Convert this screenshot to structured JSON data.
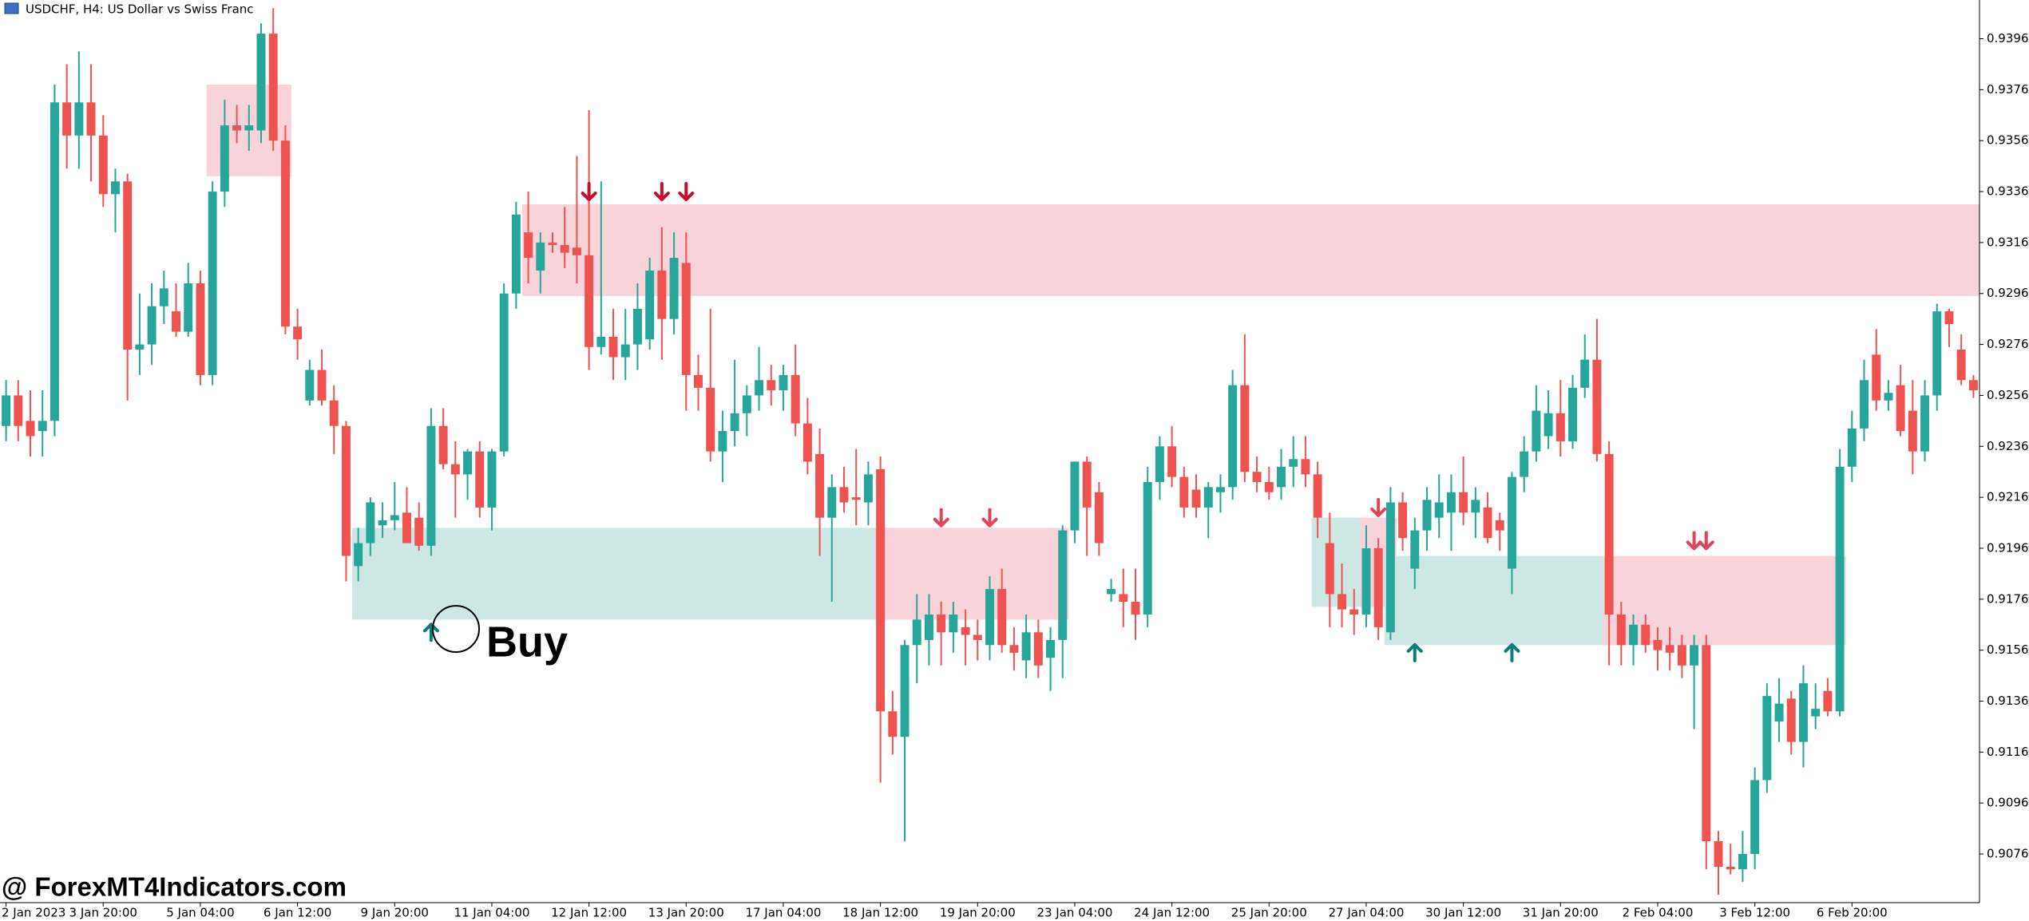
{
  "chart_data": {
    "type": "candlestick",
    "title": "USDCHF, H4:  US Dollar vs Swiss Franc",
    "annotation": "Buy",
    "watermark": "@ ForexMT4Indicators.com",
    "up_color": "#26a69a",
    "down_color": "#ef5350",
    "ylim": [
      0.90569,
      0.94112
    ],
    "yticks": [
      {
        "value": 0.9396,
        "label": "0.93960"
      },
      {
        "value": 0.9376,
        "label": "0.93760"
      },
      {
        "value": 0.9356,
        "label": "0.93560"
      },
      {
        "value": 0.9336,
        "label": "0.93360"
      },
      {
        "value": 0.9316,
        "label": "0.93160"
      },
      {
        "value": 0.9296,
        "label": "0.92960"
      },
      {
        "value": 0.9276,
        "label": "0.92760"
      },
      {
        "value": 0.9256,
        "label": "0.92560"
      },
      {
        "value": 0.9236,
        "label": "0.92360"
      },
      {
        "value": 0.9216,
        "label": "0.92160"
      },
      {
        "value": 0.9196,
        "label": "0.91960"
      },
      {
        "value": 0.9176,
        "label": "0.91760"
      },
      {
        "value": 0.9156,
        "label": "0.91560"
      },
      {
        "value": 0.9136,
        "label": "0.91360"
      },
      {
        "value": 0.9116,
        "label": "0.91160"
      },
      {
        "value": 0.9096,
        "label": "0.90960"
      },
      {
        "value": 0.9076,
        "label": "0.90760"
      }
    ],
    "categories": [
      "2 Jan 2023",
      null,
      null,
      null,
      null,
      null,
      null,
      null,
      "3 Jan 20:00",
      null,
      null,
      null,
      null,
      null,
      null,
      null,
      "5 Jan 04:00",
      null,
      null,
      null,
      null,
      null,
      null,
      null,
      "6 Jan 12:00",
      null,
      null,
      null,
      null,
      null,
      null,
      null,
      "9 Jan 20:00",
      null,
      null,
      null,
      null,
      null,
      null,
      null,
      "11 Jan 04:00",
      null,
      null,
      null,
      null,
      null,
      null,
      null,
      "12 Jan 12:00",
      null,
      null,
      null,
      null,
      null,
      null,
      null,
      "13 Jan 20:00",
      null,
      null,
      null,
      null,
      null,
      null,
      null,
      "17 Jan 04:00",
      null,
      null,
      null,
      null,
      null,
      null,
      null,
      "18 Jan 12:00",
      null,
      null,
      null,
      null,
      null,
      null,
      null,
      "19 Jan 20:00",
      null,
      null,
      null,
      null,
      null,
      null,
      null,
      "23 Jan 04:00",
      null,
      null,
      null,
      null,
      null,
      null,
      null,
      "24 Jan 12:00",
      null,
      null,
      null,
      null,
      null,
      null,
      null,
      "25 Jan 20:00",
      null,
      null,
      null,
      null,
      null,
      null,
      null,
      "27 Jan 04:00",
      null,
      null,
      null,
      null,
      null,
      null,
      null,
      "30 Jan 12:00",
      null,
      null,
      null,
      null,
      null,
      null,
      null,
      "31 Jan 20:00",
      null,
      null,
      null,
      null,
      null,
      null,
      null,
      "2 Feb 04:00",
      null,
      null,
      null,
      null,
      null,
      null,
      null,
      "3 Feb 12:00",
      null,
      null,
      null,
      null,
      null,
      null,
      null,
      "6 Feb 20:00",
      null,
      null,
      null,
      null,
      null,
      null,
      null,
      null,
      null,
      null
    ],
    "candles": [
      [
        0.9244,
        0.9262,
        0.9238,
        0.9256
      ],
      [
        0.9256,
        0.9262,
        0.9238,
        0.9244
      ],
      [
        0.9246,
        0.9258,
        0.9232,
        0.924
      ],
      [
        0.9242,
        0.9258,
        0.9232,
        0.9246
      ],
      [
        0.9246,
        0.9378,
        0.924,
        0.9371
      ],
      [
        0.9371,
        0.9386,
        0.9345,
        0.9358
      ],
      [
        0.9358,
        0.9391,
        0.9345,
        0.9371
      ],
      [
        0.9371,
        0.9386,
        0.934,
        0.9358
      ],
      [
        0.9358,
        0.9366,
        0.933,
        0.9335
      ],
      [
        0.9335,
        0.9345,
        0.932,
        0.934
      ],
      [
        0.934,
        0.9343,
        0.9254,
        0.9274
      ],
      [
        0.9274,
        0.9296,
        0.9264,
        0.9276
      ],
      [
        0.9276,
        0.93,
        0.9268,
        0.9291
      ],
      [
        0.9291,
        0.9305,
        0.9284,
        0.9298
      ],
      [
        0.9289,
        0.93,
        0.9279,
        0.9281
      ],
      [
        0.9281,
        0.9308,
        0.9279,
        0.93
      ],
      [
        0.93,
        0.9305,
        0.926,
        0.9264
      ],
      [
        0.9264,
        0.934,
        0.926,
        0.9336
      ],
      [
        0.9336,
        0.9372,
        0.933,
        0.9362
      ],
      [
        0.9362,
        0.937,
        0.9355,
        0.936
      ],
      [
        0.936,
        0.937,
        0.9352,
        0.9362
      ],
      [
        0.936,
        0.9402,
        0.9355,
        0.9398
      ],
      [
        0.9398,
        0.9408,
        0.9352,
        0.9356
      ],
      [
        0.9356,
        0.9362,
        0.928,
        0.9283
      ],
      [
        0.9283,
        0.929,
        0.927,
        0.9278
      ],
      [
        0.9254,
        0.927,
        0.9252,
        0.9266
      ],
      [
        0.9266,
        0.9274,
        0.9252,
        0.9254
      ],
      [
        0.9254,
        0.926,
        0.9233,
        0.9244
      ],
      [
        0.9244,
        0.9246,
        0.9183,
        0.9193
      ],
      [
        0.9189,
        0.9204,
        0.9183,
        0.9198
      ],
      [
        0.9198,
        0.9216,
        0.9193,
        0.9214
      ],
      [
        0.9205,
        0.9214,
        0.92,
        0.9207
      ],
      [
        0.9207,
        0.9222,
        0.9203,
        0.9209
      ],
      [
        0.921,
        0.922,
        0.9198,
        0.9198
      ],
      [
        0.9208,
        0.9214,
        0.9195,
        0.9197
      ],
      [
        0.9197,
        0.9251,
        0.9193,
        0.9244
      ],
      [
        0.9244,
        0.9251,
        0.9227,
        0.9229
      ],
      [
        0.9229,
        0.9238,
        0.9208,
        0.9225
      ],
      [
        0.9225,
        0.9235,
        0.9215,
        0.9234
      ],
      [
        0.9234,
        0.9238,
        0.9208,
        0.9212
      ],
      [
        0.9212,
        0.9235,
        0.9203,
        0.9234
      ],
      [
        0.9234,
        0.93,
        0.9232,
        0.9296
      ],
      [
        0.9296,
        0.9332,
        0.929,
        0.9327
      ],
      [
        0.932,
        0.9336,
        0.93,
        0.931
      ],
      [
        0.9305,
        0.932,
        0.9296,
        0.9316
      ],
      [
        0.9316,
        0.932,
        0.9312,
        0.9315
      ],
      [
        0.9315,
        0.933,
        0.9306,
        0.9312
      ],
      [
        0.9314,
        0.935,
        0.93,
        0.9311
      ],
      [
        0.9311,
        0.9368,
        0.9266,
        0.9275
      ],
      [
        0.9275,
        0.934,
        0.9272,
        0.9279
      ],
      [
        0.9279,
        0.929,
        0.9262,
        0.9271
      ],
      [
        0.9271,
        0.929,
        0.9262,
        0.9276
      ],
      [
        0.9276,
        0.93,
        0.9266,
        0.929
      ],
      [
        0.9278,
        0.931,
        0.9274,
        0.9305
      ],
      [
        0.9305,
        0.9322,
        0.927,
        0.9286
      ],
      [
        0.9286,
        0.932,
        0.928,
        0.931
      ],
      [
        0.9308,
        0.932,
        0.925,
        0.9264
      ],
      [
        0.9264,
        0.9272,
        0.925,
        0.9259
      ],
      [
        0.9259,
        0.929,
        0.923,
        0.9234
      ],
      [
        0.9234,
        0.925,
        0.9222,
        0.9242
      ],
      [
        0.9242,
        0.927,
        0.9236,
        0.9249
      ],
      [
        0.9249,
        0.926,
        0.924,
        0.9256
      ],
      [
        0.9256,
        0.9275,
        0.925,
        0.9262
      ],
      [
        0.9262,
        0.9268,
        0.9252,
        0.9258
      ],
      [
        0.9258,
        0.9268,
        0.925,
        0.9264
      ],
      [
        0.9264,
        0.9276,
        0.924,
        0.9245
      ],
      [
        0.9245,
        0.9255,
        0.9225,
        0.923
      ],
      [
        0.9233,
        0.9243,
        0.9193,
        0.9208
      ],
      [
        0.9208,
        0.9225,
        0.9175,
        0.922
      ],
      [
        0.922,
        0.9228,
        0.921,
        0.9214
      ],
      [
        0.9216,
        0.9235,
        0.9205,
        0.9215
      ],
      [
        0.9214,
        0.923,
        0.9205,
        0.9225
      ],
      [
        0.9227,
        0.9232,
        0.9104,
        0.9132
      ],
      [
        0.9132,
        0.914,
        0.9115,
        0.9122
      ],
      [
        0.9122,
        0.916,
        0.9081,
        0.9158
      ],
      [
        0.9158,
        0.9178,
        0.9143,
        0.9168
      ],
      [
        0.916,
        0.9178,
        0.915,
        0.917
      ],
      [
        0.917,
        0.9175,
        0.915,
        0.9163
      ],
      [
        0.9163,
        0.9175,
        0.9155,
        0.917
      ],
      [
        0.9165,
        0.9172,
        0.915,
        0.9162
      ],
      [
        0.9162,
        0.9168,
        0.9152,
        0.916
      ],
      [
        0.9158,
        0.9185,
        0.9152,
        0.918
      ],
      [
        0.918,
        0.9188,
        0.9155,
        0.9158
      ],
      [
        0.9158,
        0.9165,
        0.9148,
        0.9155
      ],
      [
        0.9152,
        0.917,
        0.9145,
        0.9163
      ],
      [
        0.9163,
        0.9168,
        0.9145,
        0.915
      ],
      [
        0.9153,
        0.9165,
        0.914,
        0.916
      ],
      [
        0.916,
        0.9205,
        0.9145,
        0.9203
      ],
      [
        0.9203,
        0.923,
        0.9198,
        0.923
      ],
      [
        0.923,
        0.9232,
        0.9193,
        0.9212
      ],
      [
        0.9218,
        0.9222,
        0.9193,
        0.9198
      ],
      [
        0.9178,
        0.9184,
        0.9175,
        0.918
      ],
      [
        0.9178,
        0.9188,
        0.9165,
        0.9175
      ],
      [
        0.9175,
        0.9188,
        0.916,
        0.917
      ],
      [
        0.917,
        0.9228,
        0.9165,
        0.9222
      ],
      [
        0.9222,
        0.924,
        0.9215,
        0.9236
      ],
      [
        0.9236,
        0.9244,
        0.922,
        0.9224
      ],
      [
        0.9224,
        0.9228,
        0.9208,
        0.9212
      ],
      [
        0.9219,
        0.9225,
        0.9208,
        0.9212
      ],
      [
        0.9212,
        0.9222,
        0.92,
        0.922
      ],
      [
        0.9218,
        0.9225,
        0.921,
        0.922
      ],
      [
        0.922,
        0.9266,
        0.9215,
        0.926
      ],
      [
        0.926,
        0.928,
        0.9222,
        0.9226
      ],
      [
        0.9226,
        0.9232,
        0.9218,
        0.9222
      ],
      [
        0.9222,
        0.9228,
        0.9215,
        0.9218
      ],
      [
        0.922,
        0.9235,
        0.9215,
        0.9228
      ],
      [
        0.9228,
        0.924,
        0.922,
        0.9231
      ],
      [
        0.9231,
        0.924,
        0.922,
        0.9225
      ],
      [
        0.9225,
        0.923,
        0.92,
        0.9208
      ],
      [
        0.9198,
        0.921,
        0.9165,
        0.9178
      ],
      [
        0.9178,
        0.919,
        0.9165,
        0.9172
      ],
      [
        0.9172,
        0.918,
        0.9162,
        0.917
      ],
      [
        0.917,
        0.9205,
        0.9165,
        0.9196
      ],
      [
        0.9196,
        0.92,
        0.916,
        0.9165
      ],
      [
        0.9163,
        0.922,
        0.916,
        0.9214
      ],
      [
        0.9214,
        0.9218,
        0.9195,
        0.92
      ],
      [
        0.9188,
        0.9208,
        0.918,
        0.9203
      ],
      [
        0.9203,
        0.922,
        0.9195,
        0.9215
      ],
      [
        0.9208,
        0.9225,
        0.92,
        0.9214
      ],
      [
        0.921,
        0.9225,
        0.9195,
        0.9218
      ],
      [
        0.9218,
        0.9232,
        0.9205,
        0.921
      ],
      [
        0.921,
        0.922,
        0.92,
        0.9215
      ],
      [
        0.9212,
        0.9218,
        0.9198,
        0.92
      ],
      [
        0.9207,
        0.921,
        0.9195,
        0.9203
      ],
      [
        0.9188,
        0.9226,
        0.9178,
        0.9224
      ],
      [
        0.9224,
        0.924,
        0.9218,
        0.9234
      ],
      [
        0.9234,
        0.926,
        0.923,
        0.925
      ],
      [
        0.924,
        0.9258,
        0.9235,
        0.9249
      ],
      [
        0.9249,
        0.9262,
        0.9232,
        0.9238
      ],
      [
        0.9238,
        0.9264,
        0.9235,
        0.9259
      ],
      [
        0.9259,
        0.928,
        0.9255,
        0.927
      ],
      [
        0.927,
        0.9286,
        0.923,
        0.9233
      ],
      [
        0.9233,
        0.9238,
        0.915,
        0.917
      ],
      [
        0.917,
        0.9175,
        0.915,
        0.9158
      ],
      [
        0.9158,
        0.917,
        0.915,
        0.9166
      ],
      [
        0.9166,
        0.917,
        0.9155,
        0.9158
      ],
      [
        0.916,
        0.9165,
        0.9148,
        0.9156
      ],
      [
        0.9158,
        0.9165,
        0.9148,
        0.9155
      ],
      [
        0.9158,
        0.9162,
        0.9145,
        0.915
      ],
      [
        0.915,
        0.9162,
        0.9125,
        0.9158
      ],
      [
        0.9158,
        0.9162,
        0.907,
        0.9081
      ],
      [
        0.9081,
        0.9085,
        0.906,
        0.9071
      ],
      [
        0.9071,
        0.908,
        0.9068,
        0.907
      ],
      [
        0.907,
        0.9085,
        0.9065,
        0.9076
      ],
      [
        0.9076,
        0.911,
        0.907,
        0.9105
      ],
      [
        0.9105,
        0.9143,
        0.91,
        0.9138
      ],
      [
        0.9128,
        0.9145,
        0.912,
        0.9135
      ],
      [
        0.9137,
        0.914,
        0.9115,
        0.912
      ],
      [
        0.912,
        0.915,
        0.911,
        0.9143
      ],
      [
        0.913,
        0.9143,
        0.9125,
        0.9133
      ],
      [
        0.914,
        0.9145,
        0.913,
        0.9132
      ],
      [
        0.9132,
        0.9235,
        0.913,
        0.9228
      ],
      [
        0.9228,
        0.925,
        0.9222,
        0.9243
      ],
      [
        0.9243,
        0.927,
        0.9238,
        0.9262
      ],
      [
        0.9272,
        0.9282,
        0.925,
        0.9254
      ],
      [
        0.9254,
        0.9262,
        0.925,
        0.9257
      ],
      [
        0.926,
        0.9268,
        0.924,
        0.9242
      ],
      [
        0.925,
        0.9262,
        0.9225,
        0.9234
      ],
      [
        0.9234,
        0.9262,
        0.923,
        0.9256
      ],
      [
        0.9256,
        0.9292,
        0.925,
        0.9289
      ],
      [
        0.9289,
        0.929,
        0.9275,
        0.9284
      ],
      [
        0.9274,
        0.928,
        0.926,
        0.9262
      ],
      [
        0.9262,
        0.9264,
        0.9255,
        0.9258
      ]
    ],
    "zones": [
      {
        "start": 17,
        "end": 23,
        "top": 0.9378,
        "bottom": 0.9342,
        "color": "#f8d3da"
      },
      {
        "start": 43,
        "end": 162,
        "top": 0.9331,
        "bottom": 0.9295,
        "color": "#f8d3da"
      },
      {
        "start": 29,
        "end": 72,
        "top": 0.9204,
        "bottom": 0.9168,
        "color": "#cde7e5"
      },
      {
        "start": 72,
        "end": 87,
        "top": 0.9204,
        "bottom": 0.9168,
        "color": "#f8d3da"
      },
      {
        "start": 108,
        "end": 112,
        "top": 0.9208,
        "bottom": 0.9173,
        "color": "#cde7e5"
      },
      {
        "start": 112,
        "end": 114,
        "top": 0.9208,
        "bottom": 0.9173,
        "color": "#f8d3da"
      },
      {
        "start": 114,
        "end": 132,
        "top": 0.9193,
        "bottom": 0.9158,
        "color": "#cde7e5"
      },
      {
        "start": 132,
        "end": 151,
        "top": 0.9193,
        "bottom": 0.9158,
        "color": "#f8d3da"
      }
    ],
    "signals": [
      {
        "index": 48,
        "price": 0.9336,
        "dir": "down",
        "color": "#c8102e"
      },
      {
        "index": 54,
        "price": 0.9336,
        "dir": "down",
        "color": "#c8102e"
      },
      {
        "index": 56,
        "price": 0.9336,
        "dir": "down",
        "color": "#c8102e"
      },
      {
        "index": 35,
        "price": 0.9163,
        "dir": "up",
        "color": "#0b7d77"
      },
      {
        "index": 116,
        "price": 0.9155,
        "dir": "up",
        "color": "#0b7d77"
      },
      {
        "index": 124,
        "price": 0.9155,
        "dir": "up",
        "color": "#0b7d77"
      },
      {
        "index": 77,
        "price": 0.9208,
        "dir": "down",
        "color": "#e0455a"
      },
      {
        "index": 81,
        "price": 0.9208,
        "dir": "down",
        "color": "#e0455a"
      },
      {
        "index": 113,
        "price": 0.9212,
        "dir": "down",
        "color": "#e0455a"
      },
      {
        "index": 139,
        "price": 0.9199,
        "dir": "down",
        "color": "#e0455a"
      },
      {
        "index": 140,
        "price": 0.9199,
        "dir": "down",
        "color": "#e0455a"
      }
    ]
  }
}
